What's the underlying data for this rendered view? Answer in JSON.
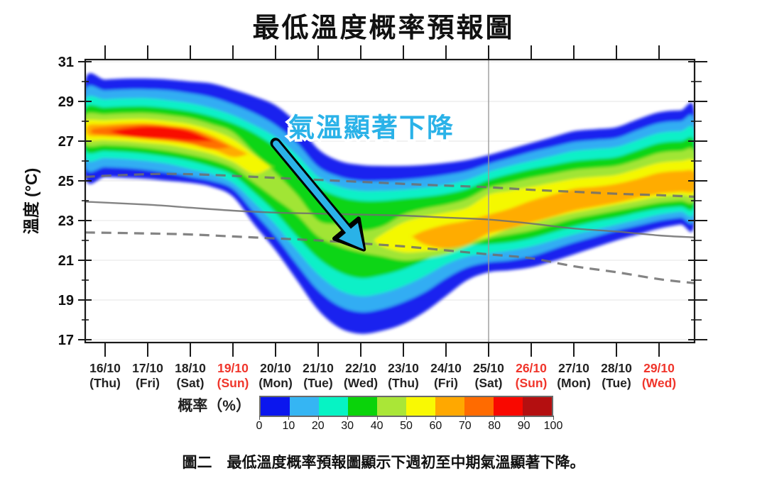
{
  "page": {
    "title": "最低溫度概率預報圖",
    "caption": "圖二　最低溫度概率預報圖顯示下週初至中期氣溫顯著下降。"
  },
  "chart_data": {
    "type": "heatmap",
    "representation": "probability-contour-plume",
    "title": "最低溫度概率預報圖",
    "ylabel": "溫度 (°C)",
    "ylim": [
      16.85,
      31.1
    ],
    "xlim_days": [
      15.53,
      29.83
    ],
    "y_major_ticks": [
      31,
      29,
      27,
      25,
      23,
      21,
      19,
      17
    ],
    "y_minor_ticks": [
      30,
      28,
      26,
      24,
      22,
      20,
      18
    ],
    "grid": true,
    "x_days": [
      {
        "day": 16,
        "date": "16/10",
        "weekday": "(Thu)",
        "red": false
      },
      {
        "day": 17,
        "date": "17/10",
        "weekday": "(Fri)",
        "red": false
      },
      {
        "day": 18,
        "date": "18/10",
        "weekday": "(Sat)",
        "red": false
      },
      {
        "day": 19,
        "date": "19/10",
        "weekday": "(Sun)",
        "red": true
      },
      {
        "day": 20,
        "date": "20/10",
        "weekday": "(Mon)",
        "red": false
      },
      {
        "day": 21,
        "date": "21/10",
        "weekday": "(Tue)",
        "red": false
      },
      {
        "day": 22,
        "date": "22/10",
        "weekday": "(Wed)",
        "red": false
      },
      {
        "day": 23,
        "date": "23/10",
        "weekday": "(Thu)",
        "red": false
      },
      {
        "day": 24,
        "date": "24/10",
        "weekday": "(Fri)",
        "red": false
      },
      {
        "day": 25,
        "date": "25/10",
        "weekday": "(Sat)",
        "red": false
      },
      {
        "day": 26,
        "date": "26/10",
        "weekday": "(Sun)",
        "red": true
      },
      {
        "day": 27,
        "date": "27/10",
        "weekday": "(Mon)",
        "red": false
      },
      {
        "day": 28,
        "date": "28/10",
        "weekday": "(Tue)",
        "red": false
      },
      {
        "day": 29,
        "date": "29/10",
        "weekday": "(Wed)",
        "red": true
      }
    ],
    "separator_day": 25,
    "annotation": {
      "text": "氣溫顯著下降",
      "day": 22.25,
      "temp": 27.7,
      "arrow_from": [
        20.0,
        26.9
      ],
      "arrow_to": [
        22.07,
        21.55
      ]
    },
    "colors": {
      "axis": "#1a1a1a",
      "grid": "#ebebeb",
      "date_red": "#f0352b",
      "date_black": "#222222",
      "climatology": "#6e6e6e",
      "separator": "#999999",
      "annotation_blue": "#2ab2e8",
      "arrow_outline": "#000000"
    },
    "climatology_lines": [
      {
        "name": "normal-mean",
        "style": "solid",
        "points": [
          [
            15.53,
            23.95
          ],
          [
            17,
            23.8
          ],
          [
            18,
            23.65
          ],
          [
            19,
            23.5
          ],
          [
            20,
            23.4
          ],
          [
            21,
            23.35
          ],
          [
            22,
            23.3
          ],
          [
            23,
            23.25
          ],
          [
            24,
            23.15
          ],
          [
            25,
            23.05
          ],
          [
            26,
            22.85
          ],
          [
            27,
            22.6
          ],
          [
            28,
            22.45
          ],
          [
            29,
            22.25
          ],
          [
            29.83,
            22.15
          ]
        ]
      },
      {
        "name": "normal-upper",
        "style": "dashed",
        "points": [
          [
            15.53,
            25.2
          ],
          [
            16.5,
            25.3
          ],
          [
            17.5,
            25.35
          ],
          [
            18.5,
            25.3
          ],
          [
            19.5,
            25.2
          ],
          [
            20.5,
            25.1
          ],
          [
            21.5,
            25.0
          ],
          [
            22.5,
            24.9
          ],
          [
            23.5,
            24.8
          ],
          [
            24.5,
            24.72
          ],
          [
            25,
            24.68
          ],
          [
            26,
            24.55
          ],
          [
            27,
            24.45
          ],
          [
            28,
            24.35
          ],
          [
            29,
            24.28
          ],
          [
            29.83,
            24.2
          ]
        ]
      },
      {
        "name": "normal-lower",
        "style": "dashed",
        "points": [
          [
            15.53,
            22.4
          ],
          [
            17,
            22.35
          ],
          [
            18,
            22.3
          ],
          [
            19,
            22.2
          ],
          [
            20,
            22.1
          ],
          [
            21,
            22.0
          ],
          [
            22,
            21.85
          ],
          [
            23,
            21.7
          ],
          [
            24,
            21.5
          ],
          [
            25,
            21.3
          ],
          [
            26,
            21.1
          ],
          [
            27,
            20.7
          ],
          [
            28,
            20.4
          ],
          [
            29,
            20.05
          ],
          [
            29.83,
            19.85
          ]
        ]
      }
    ],
    "probability_bands": [
      {
        "level": 10,
        "x": [
          15.53,
          16,
          16.5,
          17,
          17.5,
          18,
          18.5,
          19,
          19.5,
          20,
          20.5,
          21,
          21.5,
          22,
          22.5,
          23,
          23.5,
          24,
          24.5,
          25,
          25.5,
          26,
          26.5,
          27,
          27.5,
          28,
          28.5,
          29,
          29.5,
          29.83
        ],
        "upper": [
          30.05,
          30.1,
          30.15,
          30.15,
          30.1,
          30.0,
          29.9,
          29.6,
          29.25,
          28.8,
          27.9,
          26.6,
          26.0,
          25.8,
          25.75,
          25.75,
          25.8,
          25.9,
          26.05,
          26.3,
          26.6,
          26.9,
          27.2,
          27.5,
          27.6,
          27.7,
          28.1,
          28.45,
          28.55,
          28.5
        ],
        "lower": [
          25.2,
          25.2,
          25.15,
          25.1,
          25.0,
          24.9,
          24.7,
          24.2,
          22.8,
          21.5,
          20.0,
          18.5,
          17.6,
          17.3,
          17.45,
          17.8,
          18.4,
          19.2,
          20.0,
          20.4,
          20.5,
          20.65,
          20.95,
          21.3,
          21.65,
          22.0,
          22.3,
          22.6,
          22.8,
          22.85
        ]
      },
      {
        "level": 20,
        "x": [
          15.53,
          16,
          16.5,
          17,
          17.5,
          18,
          18.5,
          19,
          19.5,
          20,
          20.5,
          21,
          21.5,
          22,
          22.5,
          23,
          23.5,
          24,
          24.5,
          25,
          25.5,
          26,
          26.5,
          27,
          27.5,
          28,
          28.5,
          29,
          29.5,
          29.83
        ],
        "upper": [
          29.5,
          29.55,
          29.6,
          29.6,
          29.55,
          29.4,
          29.2,
          28.85,
          28.4,
          27.8,
          26.9,
          25.7,
          25.2,
          25.0,
          25.0,
          25.05,
          25.15,
          25.3,
          25.5,
          25.85,
          26.15,
          26.45,
          26.7,
          26.95,
          27.05,
          27.15,
          27.55,
          27.9,
          28.0,
          27.95
        ],
        "lower": [
          25.75,
          25.7,
          25.65,
          25.55,
          25.4,
          25.2,
          25.0,
          24.6,
          23.4,
          22.2,
          20.8,
          19.5,
          18.7,
          18.4,
          18.55,
          18.9,
          19.4,
          20.1,
          20.65,
          20.9,
          21.0,
          21.2,
          21.55,
          21.9,
          22.2,
          22.5,
          22.75,
          23.0,
          23.15,
          23.2
        ]
      },
      {
        "level": 30,
        "x": [
          15.53,
          16,
          16.5,
          17,
          17.5,
          18,
          18.5,
          19,
          19.5,
          20,
          20.5,
          21,
          21.5,
          22,
          22.5,
          23,
          23.5,
          24,
          24.5,
          25,
          25.5,
          26,
          26.5,
          27,
          27.5,
          28,
          28.5,
          29,
          29.5,
          29.83
        ],
        "upper": [
          29.05,
          29.1,
          29.15,
          29.15,
          29.05,
          28.9,
          28.65,
          28.3,
          27.8,
          27.2,
          26.3,
          25.2,
          24.7,
          24.5,
          24.5,
          24.55,
          24.65,
          24.8,
          25.05,
          25.45,
          25.75,
          26.0,
          26.25,
          26.5,
          26.6,
          26.7,
          27.05,
          27.4,
          27.5,
          27.45
        ],
        "lower": [
          26.2,
          26.15,
          26.1,
          26.0,
          25.85,
          25.6,
          25.35,
          24.9,
          23.9,
          22.8,
          21.5,
          20.3,
          19.5,
          19.2,
          19.35,
          19.7,
          20.2,
          20.8,
          21.2,
          21.35,
          21.5,
          21.7,
          22.0,
          22.3,
          22.55,
          22.8,
          23.05,
          23.3,
          23.45,
          23.5
        ]
      },
      {
        "level": 40,
        "x": [
          15.53,
          16,
          16.5,
          17,
          17.5,
          18,
          18.5,
          19,
          19.5,
          20,
          20.5,
          21,
          21.5,
          22,
          22.5,
          23,
          23.5,
          24,
          24.5,
          25,
          25.5,
          26,
          26.5,
          27,
          27.5,
          28,
          28.5,
          29,
          29.5,
          29.83
        ],
        "upper": [
          28.65,
          28.7,
          28.75,
          28.75,
          28.65,
          28.5,
          28.25,
          27.9,
          27.4,
          26.7,
          25.8,
          24.7,
          24.2,
          24.0,
          24.0,
          24.1,
          24.2,
          24.35,
          24.6,
          25.05,
          25.35,
          25.6,
          25.8,
          26.0,
          26.1,
          26.2,
          26.55,
          26.9,
          27.0,
          26.95
        ],
        "lower": [
          26.55,
          26.5,
          26.45,
          26.35,
          26.2,
          26.0,
          25.7,
          25.3,
          24.4,
          23.4,
          22.2,
          21.1,
          20.4,
          20.1,
          20.25,
          20.55,
          21.0,
          21.5,
          21.75,
          21.8,
          21.9,
          22.1,
          22.4,
          22.7,
          22.95,
          23.15,
          23.4,
          23.6,
          23.7,
          23.75
        ]
      },
      {
        "level": 50,
        "x": [
          15.53,
          16,
          16.5,
          17,
          17.5,
          18,
          18.5,
          19,
          19.5,
          20,
          20.5,
          21,
          21.5,
          22,
          22.5,
          23,
          23.5,
          24,
          24.5,
          25,
          25.5,
          26,
          26.5,
          27,
          27.5,
          28,
          28.5,
          29,
          29.5,
          29.83
        ],
        "upper": [
          28.3,
          28.35,
          28.4,
          28.4,
          28.3,
          28.15,
          27.85,
          27.45,
          26.4,
          25.4,
          24.3,
          23.0,
          22.8,
          22.5,
          22.7,
          23.3,
          23.6,
          23.8,
          24.1,
          24.65,
          24.9,
          25.15,
          25.35,
          25.55,
          25.65,
          25.75,
          26.05,
          26.4,
          26.5,
          26.45
        ],
        "lower": [
          26.85,
          26.8,
          26.75,
          26.65,
          26.5,
          26.3,
          26.05,
          25.65,
          24.9,
          24.1,
          23.3,
          22.2,
          21.7,
          21.4,
          21.2,
          21.0,
          21.1,
          21.3,
          21.7,
          22.1,
          22.3,
          22.5,
          22.8,
          23.1,
          23.3,
          23.5,
          23.7,
          23.9,
          24.0,
          24.05
        ]
      },
      {
        "level": 60,
        "x": [
          15.53,
          16,
          16.5,
          17,
          17.5,
          18,
          18.5,
          19,
          19.5,
          19.9
        ],
        "upper": [
          28.0,
          28.05,
          28.1,
          28.1,
          28.0,
          27.85,
          27.55,
          27.1,
          26.3,
          25.7
        ],
        "lower": [
          27.1,
          27.05,
          27.0,
          26.9,
          26.8,
          26.6,
          26.35,
          25.95,
          25.35,
          25.7
        ]
      },
      {
        "level": 60,
        "x": [
          22.3,
          22.5,
          23,
          23.5,
          24,
          24.5,
          25,
          25.5,
          26,
          26.5,
          27,
          27.5,
          28,
          28.5,
          29,
          29.5,
          29.83
        ],
        "upper": [
          22.0,
          22.3,
          22.9,
          23.2,
          23.4,
          23.65,
          24.3,
          24.5,
          24.7,
          24.9,
          25.1,
          25.2,
          25.3,
          25.6,
          25.9,
          26.0,
          25.95
        ],
        "lower": [
          22.0,
          21.7,
          21.4,
          21.45,
          21.6,
          21.9,
          22.2,
          22.6,
          22.85,
          23.15,
          23.4,
          23.6,
          23.8,
          24.0,
          24.2,
          24.3,
          24.35
        ]
      },
      {
        "level": 70,
        "x": [
          15.6,
          16,
          16.5,
          17,
          17.5,
          18,
          18.5,
          19,
          19.35
        ],
        "upper": [
          27.8,
          27.85,
          27.9,
          27.9,
          27.8,
          27.65,
          27.3,
          26.75,
          26.35
        ],
        "lower": [
          27.3,
          27.25,
          27.2,
          27.1,
          27.0,
          26.85,
          26.6,
          26.2,
          26.35
        ]
      },
      {
        "level": 70,
        "x": [
          23.2,
          23.5,
          24,
          24.5,
          25,
          25.5,
          26,
          26.5,
          27,
          27.5,
          28,
          28.5,
          29,
          29.5,
          29.83
        ],
        "upper": [
          22.2,
          22.5,
          22.8,
          23.0,
          23.3,
          23.6,
          24.0,
          24.3,
          24.6,
          24.7,
          24.85,
          25.1,
          25.4,
          25.5,
          25.45
        ],
        "lower": [
          22.2,
          21.8,
          21.6,
          21.8,
          22.35,
          22.6,
          22.9,
          23.2,
          23.5,
          23.7,
          23.9,
          24.15,
          24.35,
          24.45,
          24.5
        ]
      },
      {
        "level": 80,
        "x": [
          15.7,
          16,
          16.5,
          17,
          17.5,
          18,
          18.5,
          18.95
        ],
        "upper": [
          27.6,
          27.7,
          27.8,
          27.85,
          27.75,
          27.6,
          27.15,
          26.7
        ],
        "lower": [
          27.4,
          27.3,
          27.2,
          27.1,
          27.0,
          26.85,
          26.6,
          26.7
        ]
      },
      {
        "level": 90,
        "x": [
          16.1,
          16.5,
          17,
          17.5,
          18,
          18.55
        ],
        "upper": [
          27.5,
          27.65,
          27.75,
          27.7,
          27.5,
          27.0
        ],
        "lower": [
          27.5,
          27.25,
          27.15,
          27.1,
          27.0,
          27.0
        ]
      }
    ],
    "colorbar": {
      "label": "概率（%）",
      "ticks": [
        0,
        10,
        20,
        30,
        40,
        50,
        60,
        70,
        80,
        90,
        100
      ],
      "colors": [
        "#0b16ee",
        "#35b5f3",
        "#06f3c4",
        "#0ad30a",
        "#aae637",
        "#f9f903",
        "#ffa800",
        "#ff6b00",
        "#f90800",
        "#b40f10"
      ]
    }
  }
}
